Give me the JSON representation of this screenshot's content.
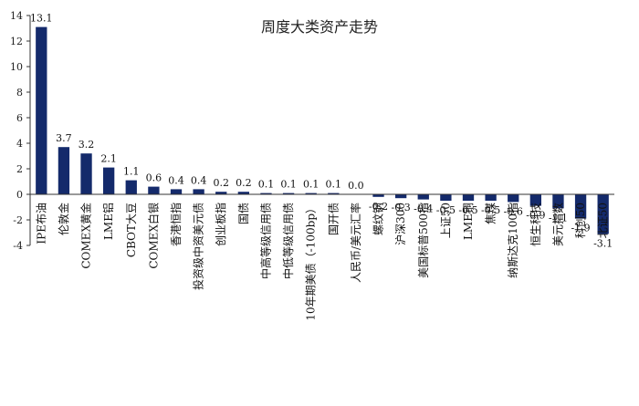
{
  "chart_data": {
    "type": "bar",
    "title": "周度大类资产走势",
    "xlabel": "",
    "ylabel": "",
    "ylim": [
      -4,
      14
    ],
    "yticks": [
      -4,
      -2,
      0,
      2,
      4,
      6,
      8,
      10,
      12,
      14
    ],
    "grid": false,
    "legend": "none",
    "bar_color": "#142a6b",
    "categories": [
      "IPE布油",
      "伦敦金",
      "COMEX黄金",
      "LME铝",
      "CBOT大豆",
      "COMEX白银",
      "香港恒指",
      "投资级中资美元债",
      "创业板指",
      "国债",
      "中高等级信用债",
      "中低等级信用债",
      "10年期美债（-100bp）",
      "国开债",
      "人民币/美元汇率",
      "螺纹钢",
      "沪深300",
      "美国标普500指",
      "上证50",
      "LME铜",
      "焦煤",
      "纳斯达克100指",
      "恒生科技",
      "美元指数",
      "科创50",
      "北证50"
    ],
    "values": [
      13.1,
      3.7,
      3.2,
      2.1,
      1.1,
      0.6,
      0.4,
      0.4,
      0.2,
      0.2,
      0.1,
      0.1,
      0.1,
      0.1,
      0.0,
      -0.2,
      -0.3,
      -0.4,
      -0.5,
      -0.5,
      -0.5,
      -0.6,
      -0.9,
      -1.1,
      -1.9,
      -3.1
    ],
    "value_labels": [
      "13.1",
      "3.7",
      "3.2",
      "2.1",
      "1.1",
      "0.6",
      "0.4",
      "0.4",
      "0.2",
      "0.2",
      "0.1",
      "0.1",
      "0.1",
      "0.1",
      "0.0",
      "-0.2",
      "-0.3",
      "-0.4",
      "-0.5",
      "-0.5",
      "-0.5",
      "-0.6",
      "-0.9",
      "-1.1",
      "-1.9",
      "-3.1"
    ]
  }
}
